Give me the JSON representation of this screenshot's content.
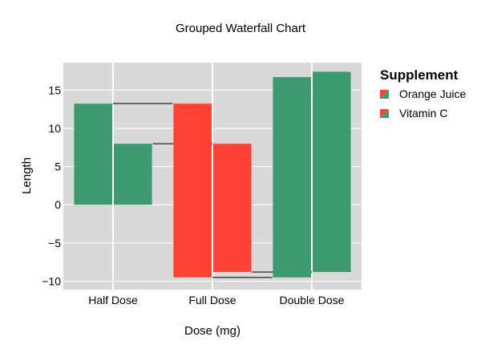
{
  "chart_data": {
    "type": "bar",
    "subtype": "grouped-waterfall",
    "title": "Grouped Waterfall Chart",
    "xlabel": "Dose (mg)",
    "ylabel": "Length",
    "categories": [
      "Half Dose",
      "Full Dose",
      "Double Dose"
    ],
    "ylim": [
      -11.1,
      18.6
    ],
    "yticks": [
      -10,
      -5,
      0,
      5,
      10,
      15
    ],
    "ytick_labels": [
      "−10",
      "−5",
      "0",
      "5",
      "10",
      "15"
    ],
    "grid": true,
    "background": "#d9d9d9",
    "legend": {
      "title": "Supplement",
      "placement": "right",
      "entries": [
        "Orange Juice",
        "Vitamin C"
      ]
    },
    "colors": {
      "increasing": "#3d9970",
      "decreasing": "#ff4136",
      "connector": "#444444"
    },
    "series": [
      {
        "name": "Orange Juice",
        "bars": [
          {
            "category": "Half Dose",
            "base": 0,
            "end": 13.23,
            "direction": "increasing"
          },
          {
            "category": "Full Dose",
            "base": 13.23,
            "end": -9.5,
            "direction": "decreasing"
          },
          {
            "category": "Double Dose",
            "base": -9.5,
            "end": 16.7,
            "direction": "increasing"
          }
        ]
      },
      {
        "name": "Vitamin C",
        "bars": [
          {
            "category": "Half Dose",
            "base": 0,
            "end": 7.98,
            "direction": "increasing"
          },
          {
            "category": "Full Dose",
            "base": 7.98,
            "end": -8.8,
            "direction": "decreasing"
          },
          {
            "category": "Double Dose",
            "base": -8.8,
            "end": 17.4,
            "direction": "increasing"
          }
        ]
      }
    ]
  }
}
